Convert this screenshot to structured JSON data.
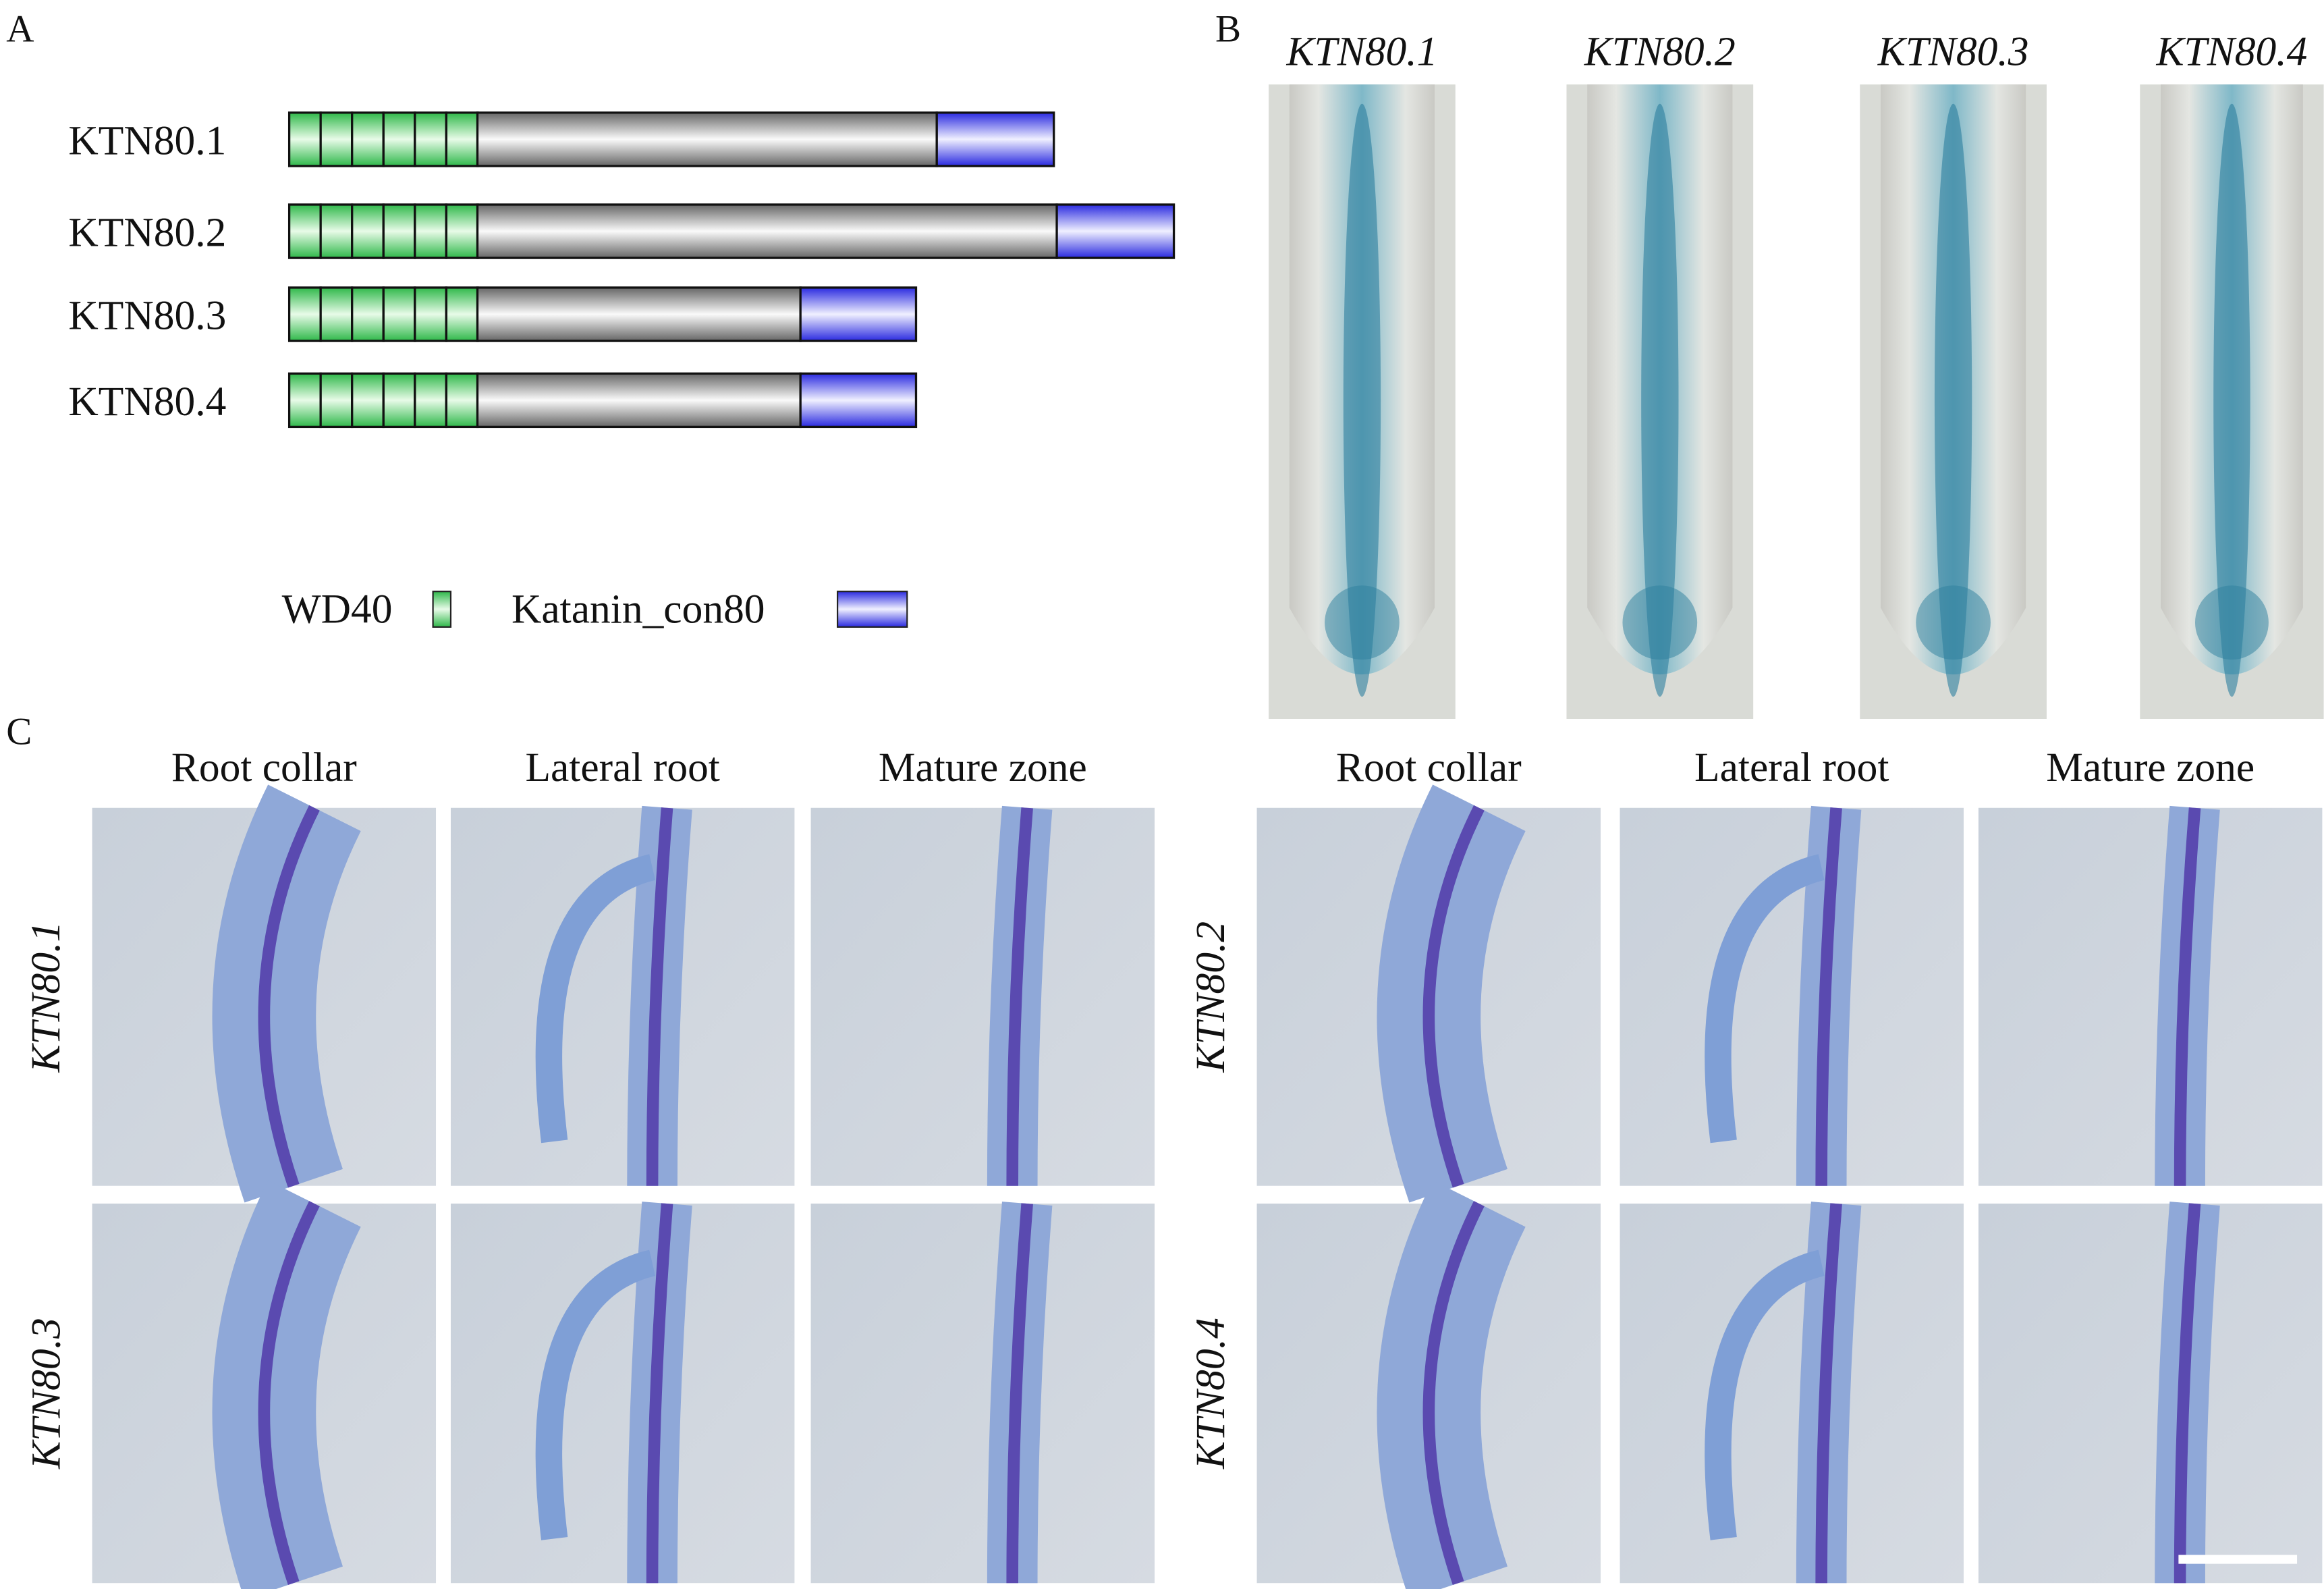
{
  "panel_a": {
    "label": "A",
    "proteins": [
      "KTN80.1",
      "KTN80.2",
      "KTN80.3",
      "KTN80.4"
    ],
    "legend": [
      "WD40",
      "Katanin_con80"
    ]
  },
  "panel_b": {
    "label": "B",
    "columns": [
      "KTN80.1",
      "KTN80.2",
      "KTN80.3",
      "KTN80.4"
    ]
  },
  "panel_c": {
    "label": "C",
    "left": {
      "columns": [
        "Root collar",
        "Lateral root",
        "Mature zone"
      ],
      "rows": [
        "KTN80.1",
        "KTN80.3"
      ]
    },
    "right": {
      "columns": [
        "Root collar",
        "Lateral root",
        "Mature zone"
      ],
      "rows": [
        "KTN80.2",
        "KTN80.4"
      ]
    }
  }
}
